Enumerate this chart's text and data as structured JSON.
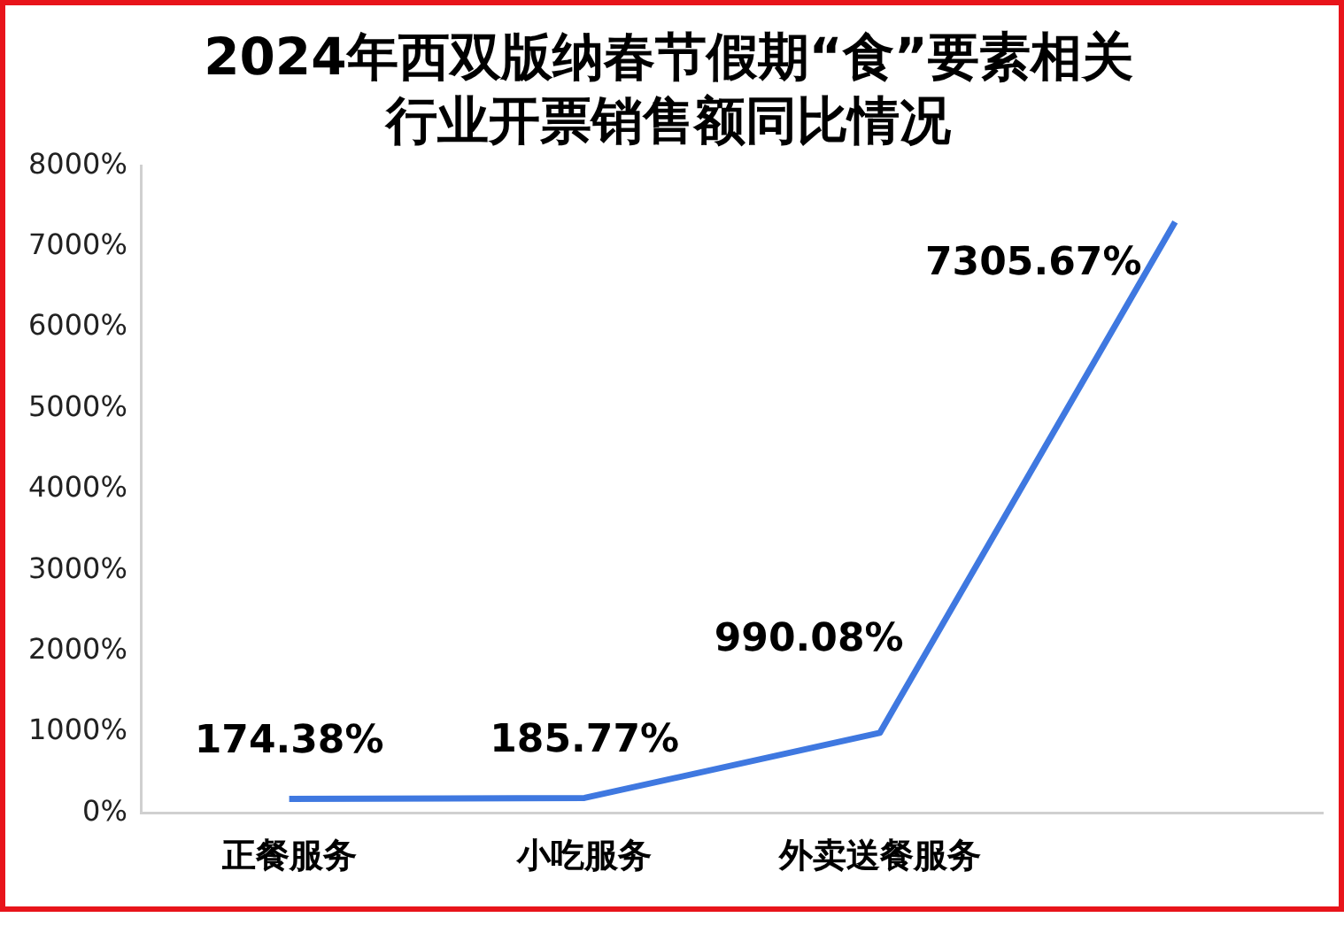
{
  "chart_data": {
    "type": "line",
    "title": "2024年西双版纳春节假期“食”要素相关行业开票销售额同比情况",
    "categories": [
      "正餐服务",
      "小吃服务",
      "外卖送餐服务",
      null
    ],
    "series": [
      {
        "color": "#3f78e0",
        "values": [
          174.38,
          185.77,
          990.08,
          7305.67
        ],
        "value_labels": [
          "174.38%",
          "185.77%",
          "990.08%",
          "7305.67%"
        ]
      }
    ],
    "ylim": [
      0,
      8000
    ],
    "yticks": [
      {
        "value": 0,
        "label": "0%"
      },
      {
        "value": 1000,
        "label": "1000%"
      },
      {
        "value": 2000,
        "label": "2000%"
      },
      {
        "value": 3000,
        "label": "3000%"
      },
      {
        "value": 4000,
        "label": "4000%"
      },
      {
        "value": 5000,
        "label": "5000%"
      },
      {
        "value": 6000,
        "label": "6000%"
      },
      {
        "value": 7000,
        "label": "7000%"
      },
      {
        "value": 8000,
        "label": "8000%"
      }
    ],
    "grid": false,
    "legend": false,
    "marker": "none",
    "line_style": "solid"
  }
}
